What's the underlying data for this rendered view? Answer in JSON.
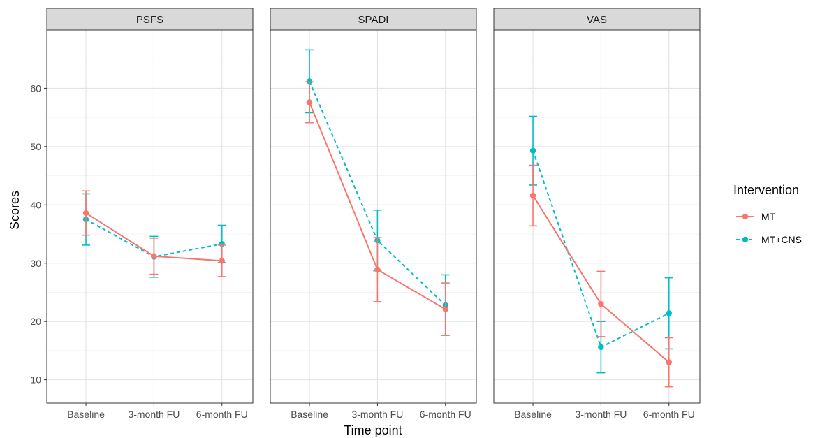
{
  "chart_data": {
    "type": "line",
    "xlabel": "Time point",
    "ylabel": "Scores",
    "ylim": [
      6,
      70
    ],
    "yticks": [
      10,
      20,
      30,
      40,
      50,
      60
    ],
    "categories": [
      "Baseline",
      "3-month FU",
      "6-month FU"
    ],
    "grid": true,
    "legend": {
      "title": "Intervention",
      "position": "right",
      "entries": [
        "MT",
        "MT+CNS"
      ]
    },
    "colors": {
      "MT": "#F8766D",
      "MT+CNS": "#00BFC4"
    },
    "panels": [
      {
        "label": "PSFS",
        "series": [
          {
            "name": "MT",
            "values": [
              38.6,
              31.2,
              30.4
            ],
            "lower": [
              34.8,
              28.1,
              27.7
            ],
            "upper": [
              42.4,
              34.3,
              33.1
            ]
          },
          {
            "name": "MT+CNS",
            "values": [
              37.5,
              31.1,
              33.3
            ],
            "lower": [
              33.1,
              27.6,
              30.1
            ],
            "upper": [
              41.9,
              34.6,
              36.5
            ]
          }
        ]
      },
      {
        "label": "SPADI",
        "series": [
          {
            "name": "MT",
            "values": [
              57.6,
              28.9,
              22.1
            ],
            "lower": [
              54.1,
              23.4,
              17.6
            ],
            "upper": [
              61.1,
              34.4,
              26.6
            ]
          },
          {
            "name": "MT+CNS",
            "values": [
              61.2,
              33.9,
              22.8
            ],
            "lower": [
              55.8,
              28.7,
              17.6
            ],
            "upper": [
              66.6,
              39.1,
              28.0
            ]
          }
        ]
      },
      {
        "label": "VAS",
        "series": [
          {
            "name": "MT",
            "values": [
              41.6,
              23.0,
              13.0
            ],
            "lower": [
              36.4,
              17.4,
              8.8
            ],
            "upper": [
              46.8,
              28.6,
              17.2
            ]
          },
          {
            "name": "MT+CNS",
            "values": [
              49.3,
              15.6,
              21.4
            ],
            "lower": [
              43.4,
              11.2,
              15.3
            ],
            "upper": [
              55.2,
              20.0,
              27.5
            ]
          }
        ]
      }
    ]
  }
}
